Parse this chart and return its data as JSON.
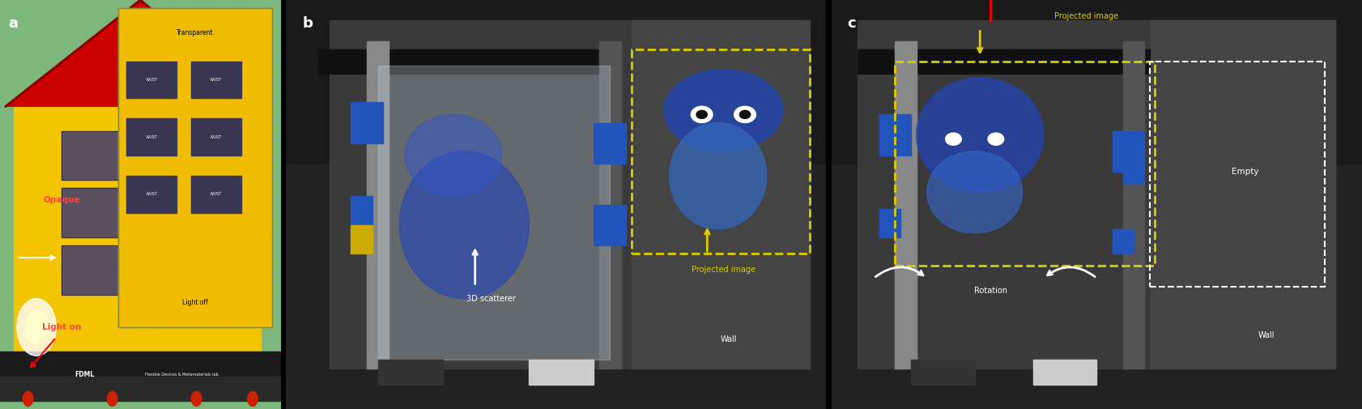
{
  "figure_width": 16.82,
  "figure_height": 5.05,
  "dpi": 100,
  "background_color": "#000000",
  "panel_a": {
    "label": "a",
    "label_color": "#ffffff",
    "label_fontsize": 13,
    "label_fontweight": "bold"
  },
  "panel_b": {
    "label": "b",
    "label_color": "#ffffff",
    "label_fontsize": 13,
    "label_fontweight": "bold"
  },
  "panel_c": {
    "label": "c",
    "label_color": "#ffffff",
    "label_fontsize": 13,
    "label_fontweight": "bold"
  }
}
